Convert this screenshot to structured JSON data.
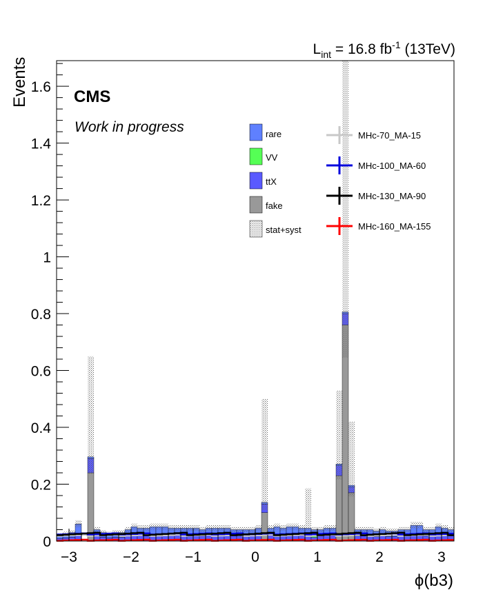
{
  "chart_data": {
    "type": "bar",
    "stacked": true,
    "xlabel": "ϕ(b3)",
    "ylabel": "Events",
    "xlim": [
      -3.2,
      3.2
    ],
    "ylim": [
      0,
      1.69
    ],
    "x_ticks": [
      "−3",
      "−2",
      "−1",
      "0",
      "1",
      "2",
      "3"
    ],
    "y_ticks": [
      "0",
      "0.2",
      "0.4",
      "0.6",
      "0.8",
      "1",
      "1.2",
      "1.4",
      "1.6"
    ],
    "lumi_label": {
      "lint": "L",
      "sub": "int",
      "mid": " = 16.8 fb",
      "sup": "-1",
      "tail": " (13TeV)"
    },
    "experiment": "CMS",
    "status": "Work in progress",
    "bins": {
      "n": 64,
      "min": -3.2,
      "max": 3.2
    },
    "legend_position": "top-right",
    "backgrounds": [
      {
        "name": "fake",
        "color": "#999999",
        "sparse": {
          "-2.65": 0.24,
          "0.15": 0.1,
          "1.35": 0.23,
          "1.45": 0.76,
          "1.55": 0.17
        }
      },
      {
        "name": "ttX",
        "color": "#5a5aff",
        "sparse": {
          "-2.65": 0.05,
          "0.15": 0.03,
          "1.35": 0.035,
          "1.45": 0.04,
          "1.55": 0.02
        }
      },
      {
        "name": "VV",
        "color": "#55ff55",
        "sparse": {
          "-1.95": 0.008,
          "0.95": 0.012
        }
      },
      {
        "name": "rare",
        "color": "#5f80ff",
        "sparse": {}
      }
    ],
    "stack_total_base": [
      0.02,
      0.025,
      0.03,
      0.06,
      0.0,
      0.045,
      0.04,
      0.03,
      0.025,
      0.03,
      0.03,
      0.04,
      0.05,
      0.045,
      0.045,
      0.05,
      0.05,
      0.05,
      0.045,
      0.045,
      0.045,
      0.045,
      0.045,
      0.04,
      0.045,
      0.045,
      0.045,
      0.045,
      0.04,
      0.04,
      0.04,
      0.04,
      0.045,
      0.04,
      0.045,
      0.05,
      0.045,
      0.05,
      0.05,
      0.045,
      0.045,
      0.04,
      0.04,
      0.045,
      0.045,
      0.04,
      0.035,
      0.04,
      0.04,
      0.04,
      0.04,
      0.035,
      0.04,
      0.035,
      0.035,
      0.04,
      0.04,
      0.055,
      0.055,
      0.04,
      0.04,
      0.05,
      0.045,
      0.04
    ],
    "uncertainty_total": {
      "-2.65": 0.65,
      "0.15": 0.5,
      "0.85": 0.185,
      "1.35": 0.53,
      "1.45": 1.69,
      "1.55": 0.42
    },
    "signals": [
      {
        "name": "MHc-70_MA-15",
        "color": "#c8c8c8"
      },
      {
        "name": "MHc-100_MA-60",
        "color": "#0000dd"
      },
      {
        "name": "MHc-130_MA-90",
        "color": "#000000"
      },
      {
        "name": "MHc-160_MA-155",
        "color": "#ff0000"
      }
    ],
    "signal_levels": {
      "MHc-70_MA-15": 0.02,
      "MHc-100_MA-60": 0.025,
      "MHc-130_MA-90": 0.025,
      "MHc-160_MA-155": 0.003
    },
    "legend_extra": "stat+syst"
  }
}
